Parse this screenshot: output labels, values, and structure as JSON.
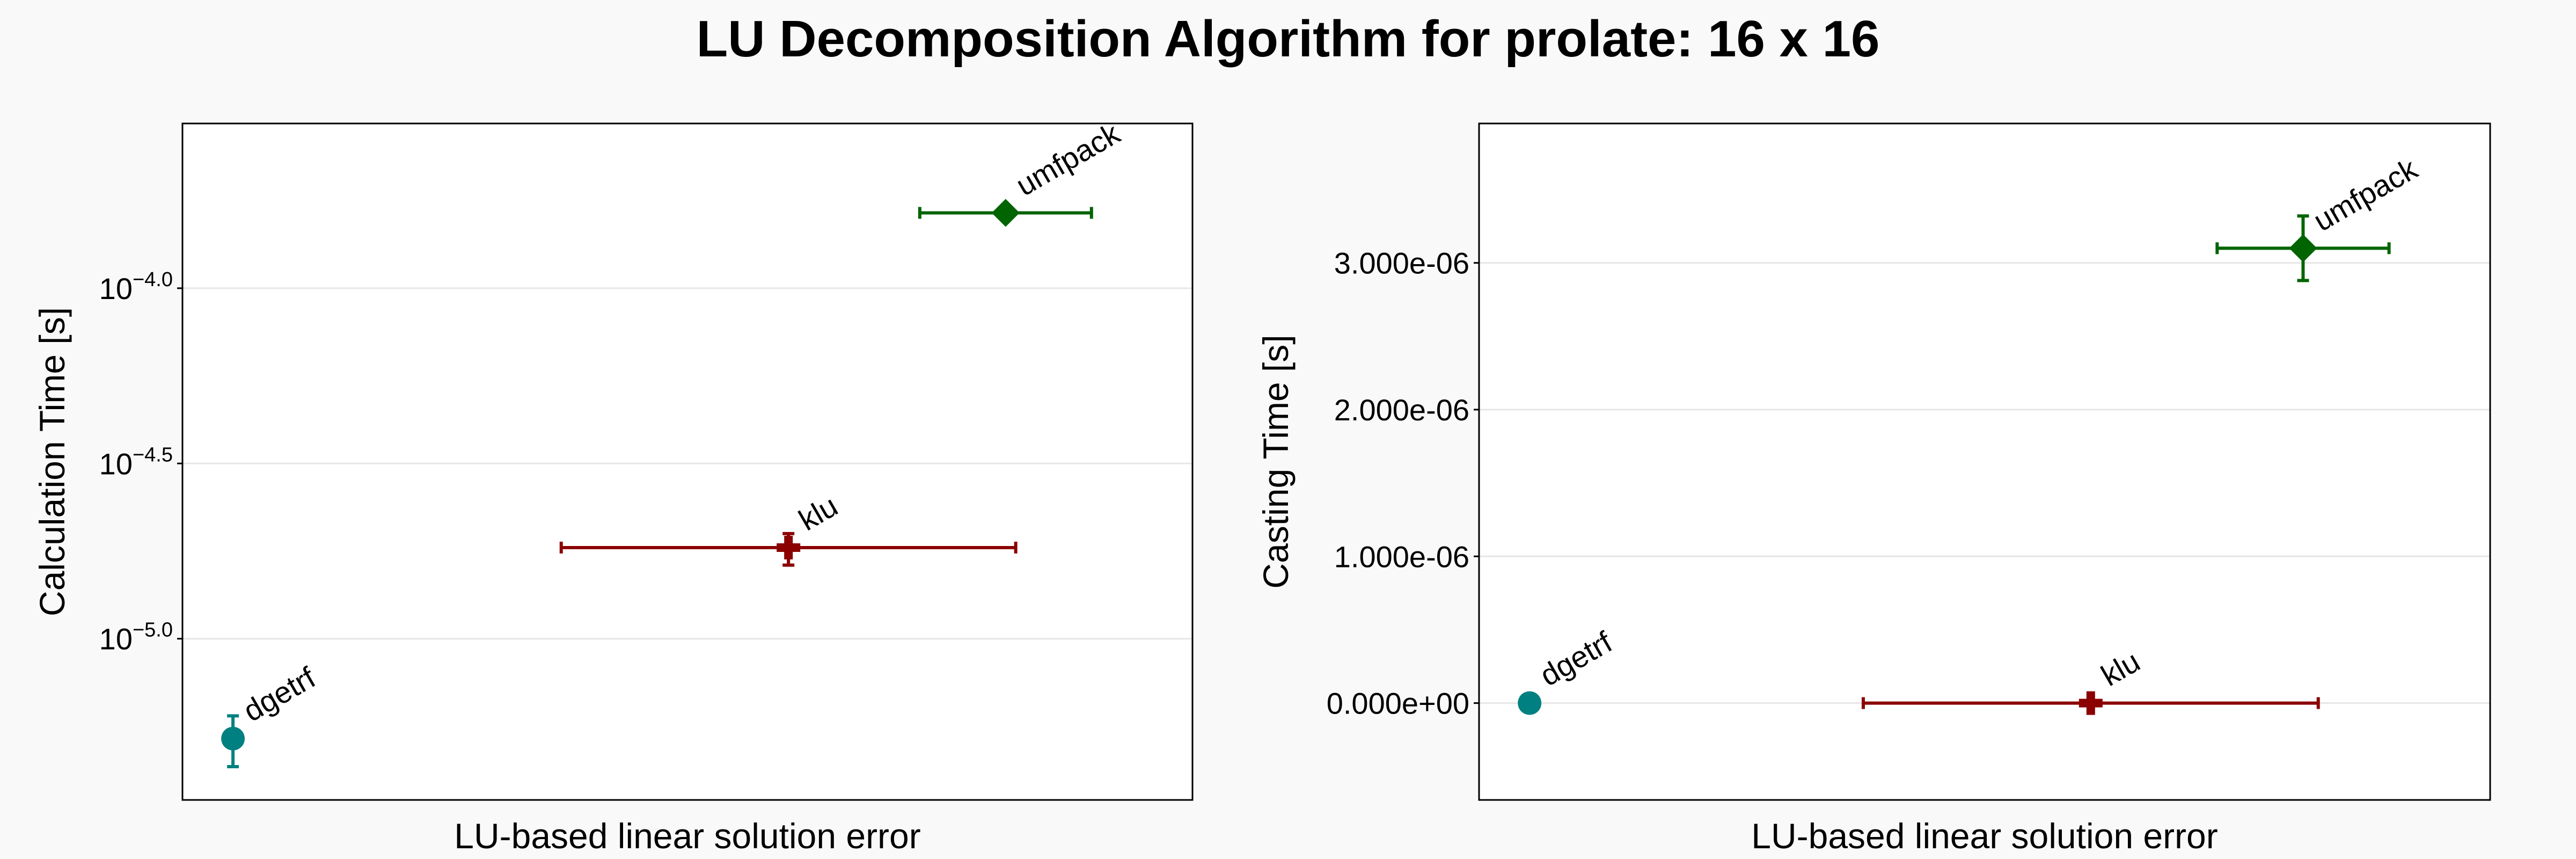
{
  "title": "LU Decomposition Algorithm for prolate: 16 x 16",
  "colors": {
    "dgetrf": "#008080",
    "klu": "#8b0000",
    "umfpack": "#006400",
    "grid": "#e6e6e6",
    "background": "#f9f9f9",
    "plot_background": "#ffffff"
  },
  "chart_data": [
    {
      "type": "scatter",
      "title": "",
      "xlabel": "LU-based linear solution error",
      "ylabel": "Calculation Time [s]",
      "yscale": "log10",
      "ylim_log10": [
        -5.46,
        -3.53
      ],
      "ytick_exponents": [
        "−4.0",
        "−4.5",
        "−5.0"
      ],
      "ytick_log10_values": [
        -4.0,
        -4.5,
        -5.0
      ],
      "grid": true,
      "x_tick_labels_shown": false,
      "series": [
        {
          "name": "dgetrf",
          "marker": "circle",
          "x_rel": 0.05,
          "x_err_rel": 0.0,
          "y_log10": -5.285,
          "y_err_log10_low": 0.08,
          "y_err_log10_high": 0.065
        },
        {
          "name": "klu",
          "marker": "cross",
          "x_rel": 0.6,
          "x_err_rel_low": 0.225,
          "x_err_rel_high": 0.225,
          "y_log10": -4.74,
          "y_err_log10_low": 0.05,
          "y_err_log10_high": 0.04
        },
        {
          "name": "umfpack",
          "marker": "diamond",
          "x_rel": 0.815,
          "x_err_rel_low": 0.085,
          "x_err_rel_high": 0.085,
          "y_log10": -3.785,
          "y_err_log10_low": 0.0,
          "y_err_log10_high": 0.0
        }
      ]
    },
    {
      "type": "scatter",
      "title": "",
      "xlabel": "LU-based linear solution error",
      "ylabel": "Casting Time [s]",
      "yscale": "linear",
      "ylim": [
        -6.6e-07,
        3.95e-06
      ],
      "ytick_values": [
        0,
        1e-06,
        2e-06,
        3e-06
      ],
      "ytick_labels": [
        "0.000e+00",
        "1.000e-06",
        "2.000e-06",
        "3.000e-06"
      ],
      "grid": true,
      "x_tick_labels_shown": false,
      "series": [
        {
          "name": "dgetrf",
          "marker": "circle",
          "x_rel": 0.05,
          "x_err_rel": 0.0,
          "y": 0.0,
          "y_err_low": 0,
          "y_err_high": 0
        },
        {
          "name": "klu",
          "marker": "cross",
          "x_rel": 0.605,
          "x_err_rel_low": 0.225,
          "x_err_rel_high": 0.225,
          "y": 0.0,
          "y_err_low": 0,
          "y_err_high": 0
        },
        {
          "name": "umfpack",
          "marker": "diamond",
          "x_rel": 0.815,
          "x_err_rel_low": 0.085,
          "x_err_rel_high": 0.085,
          "y": 3.1e-06,
          "y_err_low": 2.2e-07,
          "y_err_high": 2.2e-07
        }
      ]
    }
  ]
}
